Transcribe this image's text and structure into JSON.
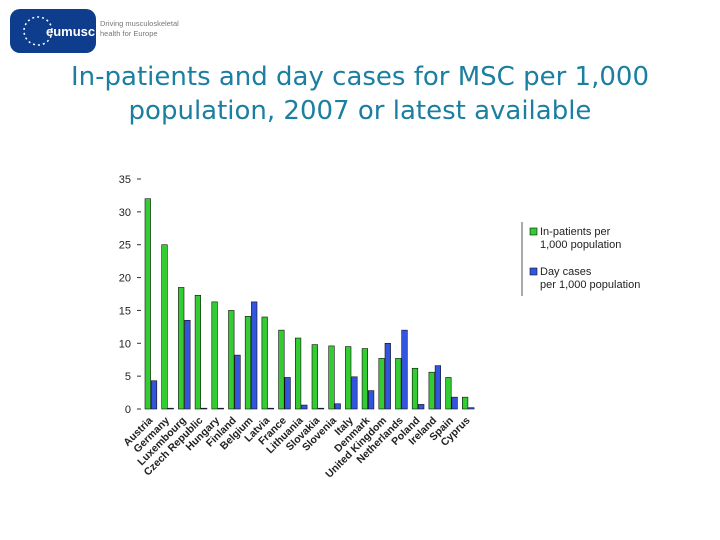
{
  "logo": {
    "brand": "eumusc.net",
    "tagline_line1": "Driving musculoskeletal",
    "tagline_line2": "health for Europe"
  },
  "title": {
    "line1": "In-patients and day cases for MSC per 1,000",
    "line2": "population, 2007 or latest available"
  },
  "chart_data": {
    "type": "bar",
    "categories": [
      "Austria",
      "Germany",
      "Luxembourg",
      "Czech Republic",
      "Hungary",
      "Finland",
      "Belgium",
      "Latvia",
      "France",
      "Lithuania",
      "Slovakia",
      "Slovenia",
      "Italy",
      "Denmark",
      "United Kingdom",
      "Netherlands",
      "Poland",
      "Ireland",
      "Spain",
      "Cyprus"
    ],
    "series": [
      {
        "name": "In-patients per 1,000 population",
        "color": "#33cc33",
        "values": [
          32,
          25,
          18.5,
          17.3,
          16.3,
          15,
          14.1,
          14,
          12,
          10.8,
          9.8,
          9.6,
          9.5,
          9.2,
          7.7,
          7.7,
          6.2,
          5.6,
          4.8,
          1.8
        ]
      },
      {
        "name": "Day cases per 1,000 population",
        "color": "#3355dd",
        "values": [
          4.3,
          0.1,
          13.5,
          0.1,
          0.1,
          8.2,
          16.3,
          0.1,
          4.8,
          0.6,
          0,
          0.8,
          4.9,
          2.8,
          10,
          12,
          0.7,
          6.6,
          1.8,
          0.2
        ]
      }
    ],
    "yticks": [
      "35",
      "30",
      "25",
      "20",
      "15",
      "10",
      "5",
      "0"
    ],
    "ylim": [
      0,
      35
    ],
    "legend_position": "right",
    "grid": false
  }
}
